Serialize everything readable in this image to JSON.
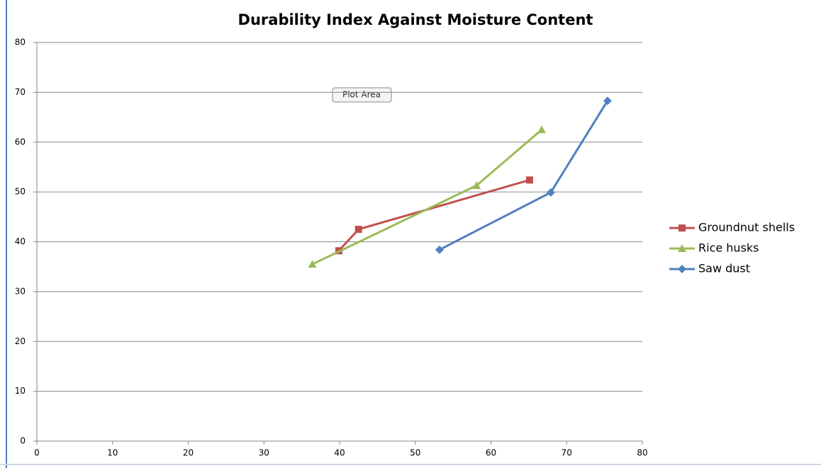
{
  "chart_data": {
    "type": "line",
    "title": "Durability Index Against Moisture Content",
    "annotation": "Plot Area",
    "xlim": [
      0,
      80
    ],
    "xticks": [
      0,
      10,
      20,
      30,
      40,
      50,
      60,
      70,
      80
    ],
    "ylim": [
      0,
      80
    ],
    "yticks": [
      0,
      10,
      20,
      30,
      40,
      50,
      60,
      70,
      80
    ],
    "grid": true,
    "legend": "right",
    "series": [
      {
        "name": "Groundnut shells",
        "color": "#c0504d",
        "marker": "square",
        "x": [
          39.9,
          42.5,
          65.1
        ],
        "values": [
          38.2,
          42.5,
          52.4
        ]
      },
      {
        "name": "Rice husks",
        "color": "#9bbb59",
        "marker": "triangle",
        "x": [
          36.4,
          58.1,
          66.7
        ],
        "values": [
          35.5,
          51.3,
          62.5
        ]
      },
      {
        "name": "Saw dust",
        "color": "#4f81bd",
        "marker": "diamond",
        "x": [
          53.2,
          67.9,
          75.4
        ],
        "values": [
          38.4,
          49.9,
          68.3
        ]
      }
    ]
  }
}
